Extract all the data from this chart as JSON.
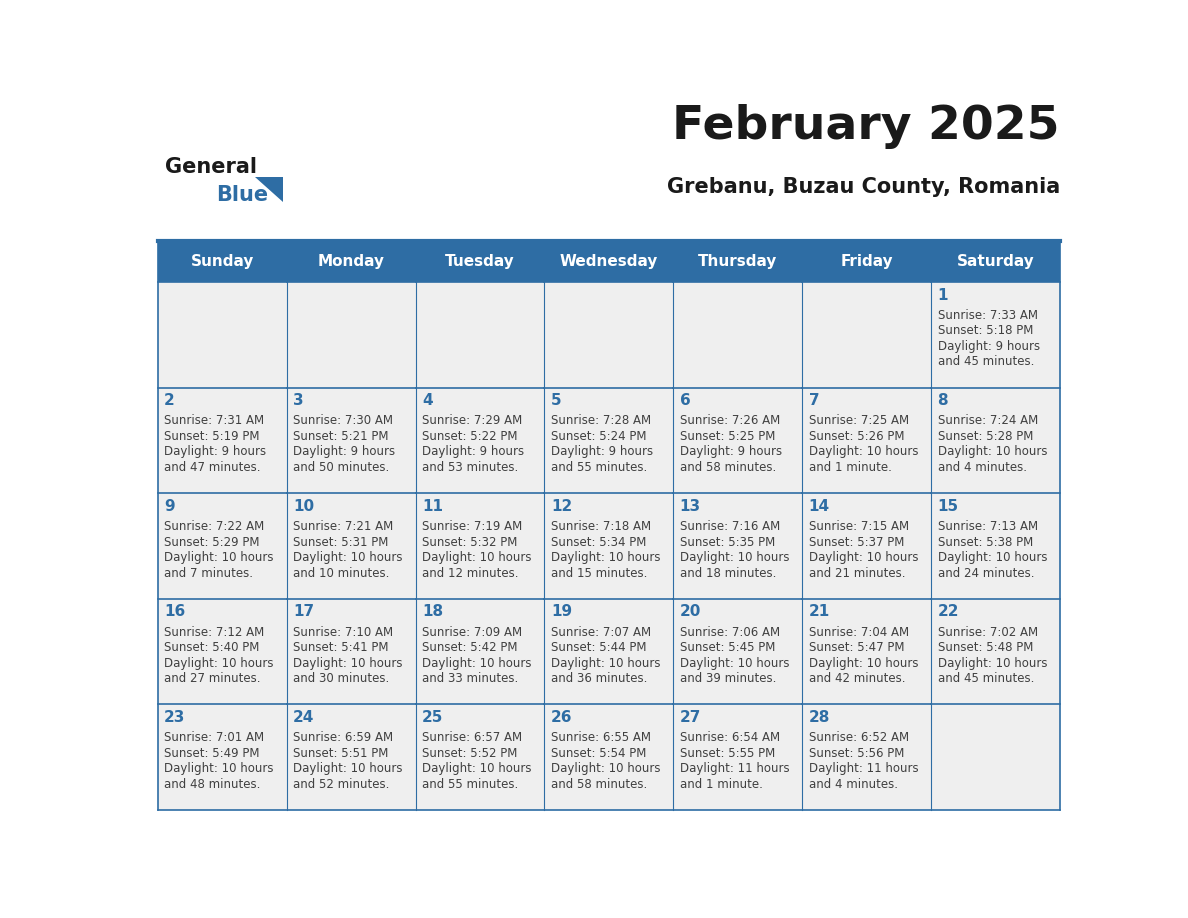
{
  "title": "February 2025",
  "subtitle": "Grebanu, Buzau County, Romania",
  "days_of_week": [
    "Sunday",
    "Monday",
    "Tuesday",
    "Wednesday",
    "Thursday",
    "Friday",
    "Saturday"
  ],
  "header_bg": "#2E6DA4",
  "header_text": "#FFFFFF",
  "cell_bg_light": "#EFEFEF",
  "border_color": "#2E6DA4",
  "day_num_color": "#2E6DA4",
  "cell_text_color": "#404040",
  "title_color": "#1a1a1a",
  "subtitle_color": "#1a1a1a",
  "logo_general_color": "#1a1a1a",
  "logo_blue_color": "#2E6DA4",
  "weeks": [
    [
      null,
      null,
      null,
      null,
      null,
      null,
      1
    ],
    [
      2,
      3,
      4,
      5,
      6,
      7,
      8
    ],
    [
      9,
      10,
      11,
      12,
      13,
      14,
      15
    ],
    [
      16,
      17,
      18,
      19,
      20,
      21,
      22
    ],
    [
      23,
      24,
      25,
      26,
      27,
      28,
      null
    ]
  ],
  "sun_times": {
    "1": {
      "rise": "7:33 AM",
      "set": "5:18 PM",
      "daylight": "9 hours and 45 minutes"
    },
    "2": {
      "rise": "7:31 AM",
      "set": "5:19 PM",
      "daylight": "9 hours and 47 minutes"
    },
    "3": {
      "rise": "7:30 AM",
      "set": "5:21 PM",
      "daylight": "9 hours and 50 minutes"
    },
    "4": {
      "rise": "7:29 AM",
      "set": "5:22 PM",
      "daylight": "9 hours and 53 minutes"
    },
    "5": {
      "rise": "7:28 AM",
      "set": "5:24 PM",
      "daylight": "9 hours and 55 minutes"
    },
    "6": {
      "rise": "7:26 AM",
      "set": "5:25 PM",
      "daylight": "9 hours and 58 minutes"
    },
    "7": {
      "rise": "7:25 AM",
      "set": "5:26 PM",
      "daylight": "10 hours and 1 minute"
    },
    "8": {
      "rise": "7:24 AM",
      "set": "5:28 PM",
      "daylight": "10 hours and 4 minutes"
    },
    "9": {
      "rise": "7:22 AM",
      "set": "5:29 PM",
      "daylight": "10 hours and 7 minutes"
    },
    "10": {
      "rise": "7:21 AM",
      "set": "5:31 PM",
      "daylight": "10 hours and 10 minutes"
    },
    "11": {
      "rise": "7:19 AM",
      "set": "5:32 PM",
      "daylight": "10 hours and 12 minutes"
    },
    "12": {
      "rise": "7:18 AM",
      "set": "5:34 PM",
      "daylight": "10 hours and 15 minutes"
    },
    "13": {
      "rise": "7:16 AM",
      "set": "5:35 PM",
      "daylight": "10 hours and 18 minutes"
    },
    "14": {
      "rise": "7:15 AM",
      "set": "5:37 PM",
      "daylight": "10 hours and 21 minutes"
    },
    "15": {
      "rise": "7:13 AM",
      "set": "5:38 PM",
      "daylight": "10 hours and 24 minutes"
    },
    "16": {
      "rise": "7:12 AM",
      "set": "5:40 PM",
      "daylight": "10 hours and 27 minutes"
    },
    "17": {
      "rise": "7:10 AM",
      "set": "5:41 PM",
      "daylight": "10 hours and 30 minutes"
    },
    "18": {
      "rise": "7:09 AM",
      "set": "5:42 PM",
      "daylight": "10 hours and 33 minutes"
    },
    "19": {
      "rise": "7:07 AM",
      "set": "5:44 PM",
      "daylight": "10 hours and 36 minutes"
    },
    "20": {
      "rise": "7:06 AM",
      "set": "5:45 PM",
      "daylight": "10 hours and 39 minutes"
    },
    "21": {
      "rise": "7:04 AM",
      "set": "5:47 PM",
      "daylight": "10 hours and 42 minutes"
    },
    "22": {
      "rise": "7:02 AM",
      "set": "5:48 PM",
      "daylight": "10 hours and 45 minutes"
    },
    "23": {
      "rise": "7:01 AM",
      "set": "5:49 PM",
      "daylight": "10 hours and 48 minutes"
    },
    "24": {
      "rise": "6:59 AM",
      "set": "5:51 PM",
      "daylight": "10 hours and 52 minutes"
    },
    "25": {
      "rise": "6:57 AM",
      "set": "5:52 PM",
      "daylight": "10 hours and 55 minutes"
    },
    "26": {
      "rise": "6:55 AM",
      "set": "5:54 PM",
      "daylight": "10 hours and 58 minutes"
    },
    "27": {
      "rise": "6:54 AM",
      "set": "5:55 PM",
      "daylight": "11 hours and 1 minute"
    },
    "28": {
      "rise": "6:52 AM",
      "set": "5:56 PM",
      "daylight": "11 hours and 4 minutes"
    }
  }
}
